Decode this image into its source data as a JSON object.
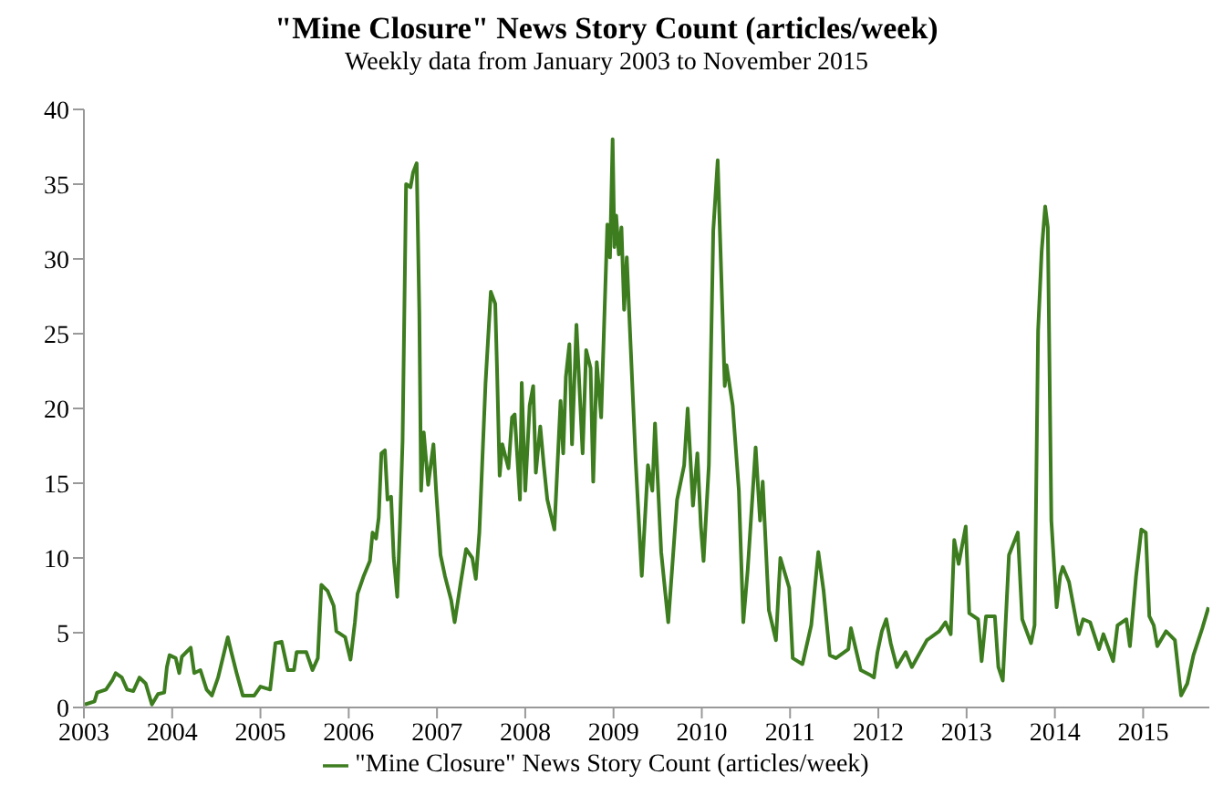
{
  "chart_data": {
    "type": "line",
    "title": "\"Mine Closure\" News Story Count (articles/week)",
    "subtitle": "Weekly data from January 2003 to November 2015",
    "x": [
      2003.01,
      2003.12,
      2003.15,
      2003.25,
      2003.32,
      2003.36,
      2003.43,
      2003.49,
      2003.56,
      2003.63,
      2003.7,
      2003.77,
      2003.84,
      2003.91,
      2003.94,
      2003.97,
      2004.04,
      2004.08,
      2004.11,
      2004.21,
      2004.25,
      2004.32,
      2004.39,
      2004.45,
      2004.52,
      2004.63,
      2004.67,
      2004.73,
      2004.8,
      2004.93,
      2005.0,
      2005.11,
      2005.17,
      2005.24,
      2005.31,
      2005.38,
      2005.41,
      2005.52,
      2005.59,
      2005.65,
      2005.69,
      2005.76,
      2005.83,
      2005.86,
      2005.96,
      2006.02,
      2006.07,
      2006.1,
      2006.17,
      2006.24,
      2006.27,
      2006.31,
      2006.34,
      2006.37,
      2006.41,
      2006.44,
      2006.48,
      2006.51,
      2006.55,
      2006.58,
      2006.61,
      2006.65,
      2006.7,
      2006.73,
      2006.77,
      2006.8,
      2006.82,
      2006.85,
      2006.9,
      2006.96,
      2006.99,
      2007.04,
      2007.09,
      2007.16,
      2007.2,
      2007.27,
      2007.33,
      2007.4,
      2007.44,
      2007.48,
      2007.55,
      2007.61,
      2007.66,
      2007.68,
      2007.71,
      2007.74,
      2007.81,
      2007.85,
      2007.88,
      2007.94,
      2007.96,
      2008.0,
      2008.05,
      2008.09,
      2008.12,
      2008.17,
      2008.21,
      2008.25,
      2008.33,
      2008.4,
      2008.43,
      2008.46,
      2008.5,
      2008.53,
      2008.58,
      2008.65,
      2008.69,
      2008.74,
      2008.77,
      2008.81,
      2008.86,
      2008.9,
      2008.93,
      2008.96,
      2008.99,
      2009.01,
      2009.03,
      2009.06,
      2009.09,
      2009.12,
      2009.15,
      2009.25,
      2009.32,
      2009.39,
      2009.44,
      2009.47,
      2009.54,
      2009.62,
      2009.72,
      2009.8,
      2009.84,
      2009.9,
      2009.95,
      2009.99,
      2010.02,
      2010.08,
      2010.13,
      2010.18,
      2010.26,
      2010.28,
      2010.35,
      2010.42,
      2010.47,
      2010.52,
      2010.61,
      2010.66,
      2010.69,
      2010.76,
      2010.84,
      2010.89,
      2010.99,
      2011.03,
      2011.14,
      2011.24,
      2011.32,
      2011.38,
      2011.45,
      2011.52,
      2011.66,
      2011.69,
      2011.8,
      2011.9,
      2011.95,
      2011.99,
      2012.04,
      2012.09,
      2012.14,
      2012.21,
      2012.31,
      2012.38,
      2012.55,
      2012.69,
      2012.76,
      2012.82,
      2012.86,
      2012.91,
      2012.99,
      2013.03,
      2013.13,
      2013.17,
      2013.22,
      2013.32,
      2013.36,
      2013.41,
      2013.48,
      2013.58,
      2013.63,
      2013.73,
      2013.77,
      2013.81,
      2013.85,
      2013.89,
      2013.92,
      2013.96,
      2014.02,
      2014.06,
      2014.09,
      2014.16,
      2014.27,
      2014.32,
      2014.4,
      2014.5,
      2014.55,
      2014.66,
      2014.71,
      2014.81,
      2014.85,
      2014.92,
      2014.98,
      2015.03,
      2015.07,
      2015.12,
      2015.16,
      2015.26,
      2015.36,
      2015.43,
      2015.5,
      2015.57,
      2015.67,
      2015.74
    ],
    "series": [
      {
        "name": "\"Mine Closure\" News Story Count (articles/week)",
        "color": "#3d7d1f",
        "values": [
          0.2,
          0.4,
          1.0,
          1.2,
          1.8,
          2.3,
          2.0,
          1.2,
          1.1,
          2.0,
          1.6,
          0.2,
          0.9,
          1.0,
          2.7,
          3.5,
          3.3,
          2.3,
          3.4,
          4.0,
          2.3,
          2.5,
          1.2,
          0.8,
          2.0,
          4.7,
          3.7,
          2.3,
          0.8,
          0.8,
          1.4,
          1.2,
          4.3,
          4.4,
          2.5,
          2.5,
          3.7,
          3.7,
          2.5,
          3.3,
          8.2,
          7.8,
          6.8,
          5.1,
          4.7,
          3.2,
          5.7,
          7.6,
          8.8,
          9.8,
          11.7,
          11.3,
          12.7,
          17.0,
          17.2,
          13.9,
          14.1,
          10.0,
          7.4,
          12.1,
          17.8,
          35.0,
          34.8,
          35.8,
          36.4,
          26.4,
          14.5,
          18.4,
          14.9,
          17.6,
          14.5,
          10.2,
          8.8,
          7.2,
          5.7,
          8.4,
          10.6,
          10.0,
          8.6,
          11.7,
          21.7,
          27.8,
          27.0,
          22.7,
          15.5,
          17.6,
          16.0,
          19.4,
          19.6,
          13.9,
          21.7,
          14.5,
          20.2,
          21.5,
          15.7,
          18.8,
          16.2,
          13.9,
          11.9,
          20.5,
          17.0,
          22.1,
          24.3,
          17.6,
          25.6,
          17.0,
          23.9,
          22.7,
          15.1,
          23.1,
          19.4,
          26.8,
          32.3,
          30.1,
          38.0,
          30.8,
          32.9,
          30.3,
          32.1,
          26.6,
          30.1,
          16.6,
          8.8,
          16.2,
          14.5,
          19.0,
          10.4,
          5.7,
          13.9,
          16.2,
          20.0,
          13.5,
          17.0,
          12.1,
          9.8,
          16.2,
          31.9,
          36.6,
          21.5,
          22.9,
          20.2,
          14.5,
          5.7,
          9.2,
          17.4,
          12.5,
          15.1,
          6.5,
          4.5,
          10.0,
          8.0,
          3.3,
          2.9,
          5.5,
          10.4,
          7.8,
          3.5,
          3.3,
          3.9,
          5.3,
          2.5,
          2.2,
          2.0,
          3.7,
          5.1,
          5.9,
          4.3,
          2.7,
          3.7,
          2.7,
          4.5,
          5.1,
          5.7,
          4.9,
          11.2,
          9.6,
          12.1,
          6.3,
          5.9,
          3.1,
          6.1,
          6.1,
          2.7,
          1.8,
          10.2,
          11.7,
          5.9,
          4.3,
          5.5,
          25.2,
          30.5,
          33.5,
          32.1,
          12.5,
          6.7,
          8.8,
          9.4,
          8.4,
          4.9,
          5.9,
          5.7,
          3.9,
          4.9,
          3.1,
          5.5,
          5.9,
          4.1,
          8.8,
          11.9,
          11.7,
          6.1,
          5.5,
          4.1,
          5.1,
          4.5,
          0.8,
          1.6,
          3.5,
          5.3,
          6.7
        ]
      }
    ],
    "xlim": [
      2003,
      2015.75
    ],
    "xticks": [
      2003,
      2004,
      2005,
      2006,
      2007,
      2008,
      2009,
      2010,
      2011,
      2012,
      2013,
      2014,
      2015
    ],
    "ylim": [
      0,
      40
    ],
    "yticks": [
      0,
      5,
      10,
      15,
      20,
      25,
      30,
      35,
      40
    ],
    "grid": false,
    "legend": "bottom",
    "line_style": "solid"
  }
}
